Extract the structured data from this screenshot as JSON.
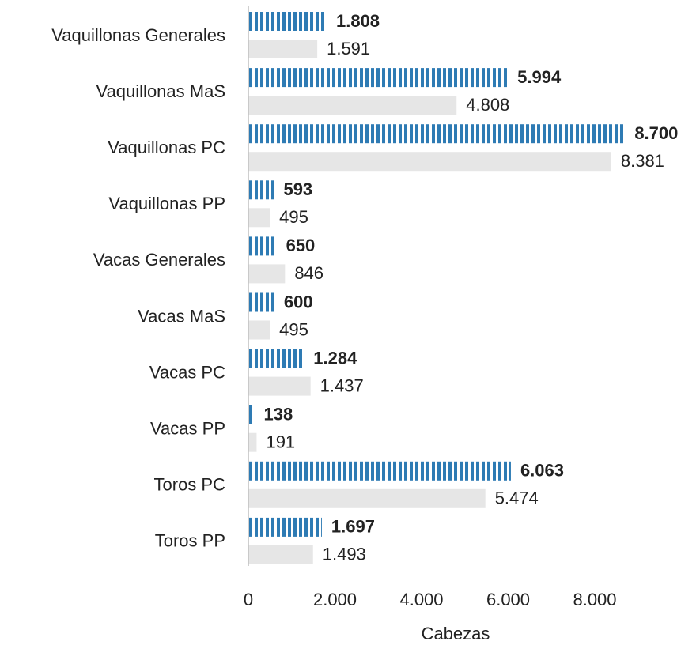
{
  "chart_data": {
    "type": "hbar",
    "categories": [
      "Vaquillonas Generales",
      "Vaquillonas MaS",
      "Vaquillonas PC",
      "Vaquillonas PP",
      "Vacas Generales",
      "Vacas MaS",
      "Vacas PC",
      "Vacas PP",
      "Toros PC",
      "Toros PP"
    ],
    "series": [
      {
        "color": "#2e7bb4",
        "pattern": "vertical-stripes",
        "values": [
          1808,
          5994,
          8700,
          593,
          650,
          600,
          1284,
          138,
          6063,
          1697
        ],
        "value_labels": [
          "1.808",
          "5.994",
          "8.700",
          "593",
          "650",
          "600",
          "1.284",
          "138",
          "6.063",
          "1.697"
        ]
      },
      {
        "color": "#e6e6e6",
        "values": [
          1591,
          4808,
          8381,
          495,
          846,
          495,
          1437,
          191,
          5474,
          1493
        ],
        "value_labels": [
          "1.591",
          "4.808",
          "8.381",
          "495",
          "846",
          "495",
          "1.437",
          "191",
          "5.474",
          "1.493"
        ]
      }
    ],
    "xlabel": "Cabezas",
    "xlim": [
      0,
      9000
    ],
    "xticks": [
      0,
      {
        "value": 2000,
        "label": "2.000"
      },
      {
        "value": 4000,
        "label": "4.000"
      },
      {
        "value": 6000,
        "label": "6.000"
      },
      {
        "value": 8000,
        "label": "8.000"
      }
    ]
  }
}
